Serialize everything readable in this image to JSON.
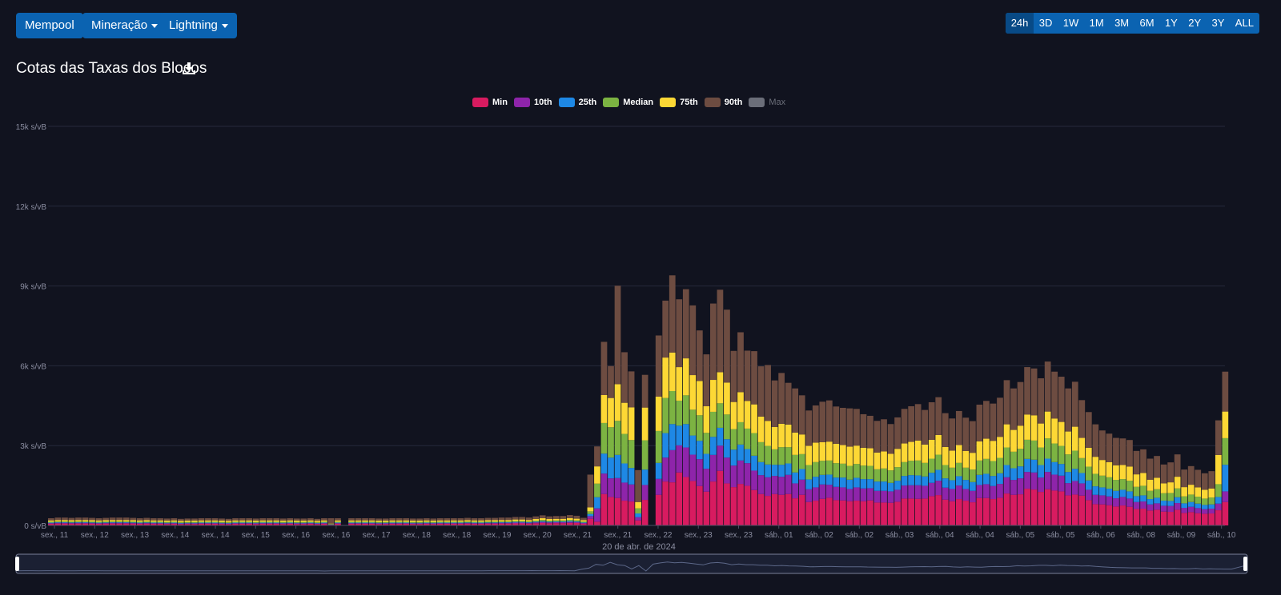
{
  "nav": {
    "mempool": "Mempool",
    "mining": "Mineração",
    "lightning": "Lightning"
  },
  "range_selector": [
    "24h",
    "3D",
    "1W",
    "1M",
    "3M",
    "6M",
    "1Y",
    "2Y",
    "3Y",
    "ALL"
  ],
  "range_active": "24h",
  "colors": {
    "Min": "#d81b60",
    "10th": "#8e24aa",
    "25th": "#1e88e5",
    "Median": "#7cb342",
    "75th": "#fdd835",
    "90th": "#6d4c41",
    "Max": "#6b6e79",
    "background": "#11131f",
    "button": "#0b63b1"
  },
  "chart_data": {
    "type": "bar",
    "stacked": true,
    "title": "Cotas das Taxas dos Blocos",
    "y_unit": "s/vB",
    "ylim": [
      0,
      15000
    ],
    "y_ticks": [
      "0 s/vB",
      "3k s/vB",
      "6k s/vB",
      "9k s/vB",
      "12k s/vB",
      "15k s/vB"
    ],
    "x_ticks": [
      "sex., 11",
      "sex., 12",
      "sex., 13",
      "sex., 14",
      "sex., 14",
      "sex., 15",
      "sex., 16",
      "sex., 16",
      "sex., 17",
      "sex., 18",
      "sex., 18",
      "sex., 19",
      "sex., 20",
      "sex., 21",
      "sex., 21",
      "sex., 22",
      "sex., 23",
      "sex., 23",
      "sáb., 01",
      "sáb., 02",
      "sáb., 02",
      "sáb., 03",
      "sáb., 04",
      "sáb., 04",
      "sáb., 05",
      "sáb., 05",
      "sáb., 06",
      "sáb., 08",
      "sáb., 09",
      "sáb., 10"
    ],
    "x_date_label": "20 de abr. de 2024",
    "legend": [
      "Min",
      "10th",
      "25th",
      "Median",
      "75th",
      "90th",
      "Max"
    ],
    "legend_hidden": [
      "Max"
    ],
    "grid": true,
    "series": [
      {
        "name": "Min",
        "values": [
          60,
          70,
          70,
          65,
          70,
          70,
          65,
          60,
          65,
          70,
          70,
          70,
          65,
          60,
          65,
          60,
          60,
          55,
          60,
          50,
          55,
          55,
          60,
          60,
          60,
          55,
          50,
          60,
          60,
          60,
          55,
          60,
          60,
          60,
          55,
          60,
          55,
          55,
          60,
          50,
          60,
          20,
          60,
          0,
          60,
          60,
          60,
          60,
          55,
          55,
          60,
          60,
          60,
          55,
          55,
          60,
          55,
          60,
          60,
          60,
          60,
          65,
          60,
          60,
          65,
          65,
          70,
          70,
          75,
          75,
          70,
          80,
          90,
          80,
          85,
          85,
          95,
          90,
          60,
          250,
          140,
          1180,
          1070,
          1030,
          930,
          900,
          190,
          960,
          0,
          1150,
          1650,
          1620,
          1990,
          1820,
          1670,
          1480,
          1270,
          1650,
          2050,
          1580,
          1440,
          1560,
          1490,
          1330,
          1180,
          1110,
          1180,
          1150,
          1180,
          1020,
          1150,
          880,
          930,
          1000,
          1040,
          950,
          940,
          910,
          930,
          910,
          940,
          860,
          860,
          850,
          890,
          1010,
          1010,
          1000,
          1010,
          1100,
          1140,
          970,
          910,
          990,
          930,
          870,
          1030,
          1030,
          990,
          1040,
          1200,
          1150,
          1170,
          1380,
          1350,
          1260,
          1360,
          1310,
          1280,
          1130,
          1160,
          1120,
          950,
          800,
          790,
          760,
          710,
          750,
          700,
          620,
          630,
          560,
          590,
          520,
          510,
          590,
          470,
          500,
          460,
          440,
          450,
          570,
          880
        ]
      },
      {
        "name": "10th",
        "values": [
          25,
          30,
          30,
          28,
          30,
          30,
          28,
          25,
          28,
          30,
          30,
          30,
          28,
          25,
          28,
          25,
          25,
          24,
          25,
          22,
          24,
          24,
          25,
          25,
          25,
          24,
          22,
          25,
          25,
          25,
          24,
          25,
          25,
          25,
          24,
          25,
          24,
          24,
          25,
          22,
          25,
          10,
          25,
          0,
          25,
          25,
          25,
          25,
          24,
          24,
          25,
          25,
          25,
          24,
          24,
          25,
          24,
          25,
          25,
          25,
          25,
          28,
          25,
          25,
          28,
          28,
          30,
          30,
          32,
          32,
          30,
          35,
          40,
          35,
          38,
          38,
          40,
          38,
          30,
          100,
          500,
          770,
          700,
          750,
          680,
          640,
          120,
          560,
          0,
          600,
          900,
          1210,
          1020,
          1110,
          990,
          1010,
          860,
          1000,
          950,
          970,
          810,
          880,
          850,
          730,
          710,
          700,
          680,
          680,
          720,
          560,
          570,
          480,
          500,
          540,
          490,
          500,
          490,
          460,
          500,
          480,
          460,
          440,
          440,
          430,
          450,
          490,
          500,
          510,
          480,
          500,
          540,
          450,
          460,
          510,
          440,
          430,
          490,
          520,
          490,
          520,
          610,
          560,
          600,
          630,
          640,
          540,
          650,
          600,
          590,
          460,
          510,
          460,
          390,
          350,
          340,
          330,
          310,
          320,
          310,
          260,
          270,
          230,
          240,
          220,
          220,
          250,
          190,
          200,
          190,
          170,
          180,
          250,
          400
        ]
      },
      {
        "name": "25th",
        "values": [
          20,
          20,
          20,
          20,
          20,
          20,
          20,
          20,
          20,
          20,
          20,
          20,
          20,
          20,
          20,
          20,
          20,
          20,
          20,
          20,
          20,
          20,
          20,
          20,
          20,
          20,
          20,
          20,
          20,
          20,
          20,
          20,
          20,
          20,
          20,
          20,
          20,
          20,
          20,
          20,
          20,
          10,
          20,
          0,
          20,
          20,
          20,
          20,
          20,
          20,
          20,
          20,
          20,
          20,
          20,
          20,
          20,
          20,
          20,
          20,
          20,
          20,
          20,
          20,
          20,
          20,
          20,
          20,
          25,
          25,
          20,
          25,
          30,
          25,
          25,
          25,
          30,
          25,
          20,
          80,
          420,
          750,
          780,
          870,
          720,
          620,
          140,
          580,
          0,
          600,
          920,
          980,
          740,
          880,
          720,
          690,
          560,
          680,
          670,
          690,
          600,
          600,
          530,
          560,
          490,
          480,
          420,
          450,
          430,
          410,
          400,
          370,
          400,
          360,
          380,
          350,
          370,
          350,
          360,
          350,
          340,
          350,
          350,
          320,
          340,
          360,
          380,
          370,
          350,
          380,
          410,
          350,
          330,
          350,
          340,
          330,
          380,
          390,
          380,
          400,
          460,
          440,
          450,
          490,
          480,
          470,
          500,
          470,
          440,
          420,
          460,
          390,
          350,
          320,
          300,
          290,
          280,
          270,
          270,
          220,
          230,
          200,
          210,
          190,
          190,
          220,
          170,
          180,
          170,
          160,
          160,
          250,
          1000
        ]
      },
      {
        "name": "Median",
        "values": [
          35,
          35,
          35,
          35,
          35,
          35,
          35,
          35,
          35,
          35,
          35,
          35,
          35,
          35,
          35,
          35,
          35,
          35,
          35,
          35,
          35,
          35,
          35,
          35,
          35,
          35,
          35,
          35,
          35,
          35,
          35,
          35,
          35,
          35,
          35,
          35,
          35,
          35,
          35,
          35,
          35,
          10,
          35,
          0,
          35,
          35,
          35,
          35,
          35,
          35,
          35,
          35,
          35,
          35,
          35,
          35,
          35,
          35,
          35,
          35,
          35,
          35,
          35,
          35,
          35,
          35,
          35,
          35,
          35,
          35,
          35,
          40,
          45,
          40,
          40,
          40,
          45,
          40,
          35,
          100,
          510,
          1150,
          1140,
          1280,
          1110,
          1050,
          190,
          1100,
          0,
          1200,
          1320,
          1240,
          940,
          1080,
          970,
          960,
          790,
          940,
          920,
          930,
          770,
          840,
          770,
          850,
          750,
          700,
          580,
          660,
          610,
          660,
          560,
          540,
          550,
          530,
          530,
          540,
          520,
          520,
          520,
          510,
          500,
          460,
          490,
          470,
          510,
          520,
          540,
          560,
          510,
          530,
          570,
          500,
          470,
          500,
          460,
          470,
          540,
          560,
          560,
          580,
          660,
          620,
          660,
          720,
          720,
          660,
          760,
          700,
          680,
          660,
          680,
          560,
          520,
          470,
          440,
          430,
          410,
          400,
          400,
          350,
          360,
          310,
          320,
          280,
          300,
          330,
          260,
          280,
          260,
          240,
          260,
          480,
          1000
        ]
      },
      {
        "name": "75th",
        "values": [
          50,
          50,
          50,
          50,
          50,
          50,
          50,
          50,
          50,
          50,
          50,
          50,
          50,
          50,
          50,
          50,
          50,
          50,
          50,
          50,
          50,
          50,
          50,
          50,
          50,
          50,
          50,
          50,
          50,
          50,
          50,
          50,
          50,
          50,
          50,
          50,
          50,
          50,
          50,
          50,
          50,
          20,
          50,
          0,
          50,
          50,
          50,
          50,
          50,
          50,
          50,
          50,
          50,
          50,
          50,
          50,
          50,
          50,
          50,
          50,
          50,
          50,
          50,
          50,
          50,
          50,
          50,
          50,
          55,
          55,
          50,
          60,
          65,
          60,
          60,
          60,
          65,
          60,
          50,
          150,
          650,
          1050,
          1100,
          1380,
          1170,
          1230,
          240,
          1230,
          0,
          1290,
          1520,
          1450,
          1260,
          1390,
          1300,
          1290,
          1000,
          1200,
          1170,
          1200,
          1020,
          1130,
          1040,
          1080,
          960,
          940,
          840,
          880,
          850,
          840,
          740,
          720,
          730,
          700,
          710,
          730,
          700,
          720,
          690,
          670,
          660,
          630,
          640,
          620,
          690,
          700,
          710,
          750,
          690,
          710,
          740,
          680,
          640,
          670,
          630,
          630,
          720,
          760,
          760,
          790,
          870,
          820,
          870,
          950,
          950,
          900,
          1010,
          940,
          900,
          860,
          900,
          760,
          710,
          640,
          590,
          570,
          550,
          530,
          530,
          470,
          480,
          420,
          430,
          370,
          400,
          440,
          350,
          370,
          350,
          330,
          340,
          1100,
          1000
        ]
      },
      {
        "name": "90th",
        "values": [
          80,
          90,
          90,
          85,
          90,
          90,
          85,
          80,
          85,
          90,
          90,
          90,
          85,
          80,
          85,
          80,
          80,
          75,
          80,
          70,
          75,
          75,
          80,
          80,
          80,
          75,
          70,
          80,
          80,
          80,
          75,
          80,
          80,
          80,
          75,
          80,
          75,
          75,
          80,
          70,
          80,
          200,
          80,
          0,
          80,
          80,
          80,
          80,
          75,
          75,
          80,
          80,
          80,
          75,
          75,
          80,
          75,
          80,
          80,
          80,
          80,
          85,
          80,
          80,
          85,
          85,
          90,
          90,
          95,
          95,
          90,
          100,
          110,
          100,
          105,
          105,
          115,
          110,
          90,
          1230,
          750,
          2000,
          1200,
          3700,
          1900,
          1350,
          1200,
          1230,
          0,
          2300,
          2140,
          2900,
          2550,
          2600,
          2620,
          1900,
          1950,
          2870,
          3100,
          2740,
          1920,
          2250,
          1890,
          2000,
          1890,
          2100,
          1750,
          1910,
          1570,
          1660,
          1470,
          1330,
          1400,
          1520,
          1550,
          1400,
          1400,
          1440,
          1380,
          1260,
          1220,
          1190,
          1210,
          1120,
          1180,
          1300,
          1340,
          1370,
          1300,
          1410,
          1420,
          1270,
          1210,
          1280,
          1250,
          1190,
          1380,
          1420,
          1400,
          1470,
          1660,
          1560,
          1640,
          1780,
          1760,
          1700,
          1880,
          1760,
          1700,
          1620,
          1690,
          1420,
          1340,
          1220,
          1110,
          1070,
          1030,
          1000,
          1000,
          880,
          890,
          790,
          820,
          710,
          750,
          840,
          660,
          700,
          660,
          620,
          650,
          1300,
          1500
        ]
      },
      {
        "name": "Max",
        "values": []
      }
    ]
  }
}
